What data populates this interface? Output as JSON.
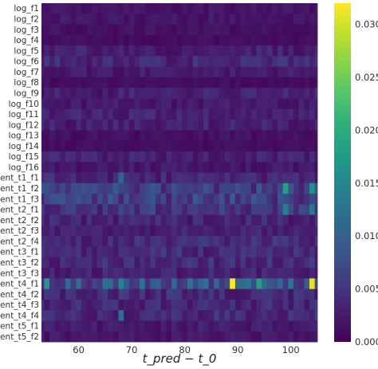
{
  "chart_data": {
    "type": "heatmap",
    "title": "",
    "xlabel": "t_pred − t_0",
    "ylabel": "",
    "x_range": [
      53,
      105
    ],
    "x_ticks": [
      60,
      70,
      80,
      90,
      100
    ],
    "rows": [
      "log_f1",
      "log_f2",
      "log_f3",
      "log_f4",
      "log_f5",
      "log_f6",
      "log_f7",
      "log_f8",
      "log_f9",
      "log_f10",
      "log_f11",
      "log_f12",
      "log_f13",
      "log_f14",
      "log_f15",
      "log_f16",
      "ent_t1_f1",
      "ent_t1_f2",
      "ent_t1_f3",
      "ent_t2_f1",
      "ent_t2_f2",
      "ent_t2_f3",
      "ent_t2_f4",
      "ent_t3_f1",
      "ent_t3_f2",
      "ent_t3_f3",
      "ent_t4_f1",
      "ent_t4_f2",
      "ent_t4_f3",
      "ent_t4_f4",
      "ent_t5_f1",
      "ent_t5_f2"
    ],
    "row_typical_values": [
      0.0018,
      0.002,
      0.0015,
      0.0012,
      0.003,
      0.004,
      0.0025,
      0.0012,
      0.003,
      0.0025,
      0.003,
      0.003,
      0.0015,
      0.0012,
      0.003,
      0.0022,
      0.0035,
      0.006,
      0.006,
      0.005,
      0.0035,
      0.0028,
      0.004,
      0.004,
      0.004,
      0.0032,
      0.0085,
      0.004,
      0.004,
      0.004,
      0.0025,
      0.0022
    ],
    "hotspots": [
      {
        "row": "ent_t4_f1",
        "x": 89,
        "value": 0.032
      },
      {
        "row": "ent_t4_f1",
        "x": 104,
        "value": 0.031
      },
      {
        "row": "ent_t1_f2",
        "x": 99,
        "value": 0.018
      },
      {
        "row": "ent_t4_f1",
        "x": 54,
        "value": 0.017
      },
      {
        "row": "ent_t4_f1",
        "x": 94,
        "value": 0.018
      },
      {
        "row": "ent_t1_f2",
        "x": 104,
        "value": 0.016
      },
      {
        "row": "ent_t2_f1",
        "x": 99,
        "value": 0.014
      },
      {
        "row": "ent_t2_f1",
        "x": 104,
        "value": 0.013
      },
      {
        "row": "ent_t4_f1",
        "x": 68,
        "value": 0.014
      },
      {
        "row": "ent_t4_f4",
        "x": 68,
        "value": 0.012
      },
      {
        "row": "ent_t1_f1",
        "x": 68,
        "value": 0.011
      }
    ],
    "colorbar": {
      "min": 0.0,
      "max": 0.032,
      "ticks": [
        "0.000",
        "0.005",
        "0.010",
        "0.015",
        "0.020",
        "0.025",
        "0.030"
      ],
      "colormap": "viridis"
    },
    "grid": false
  }
}
